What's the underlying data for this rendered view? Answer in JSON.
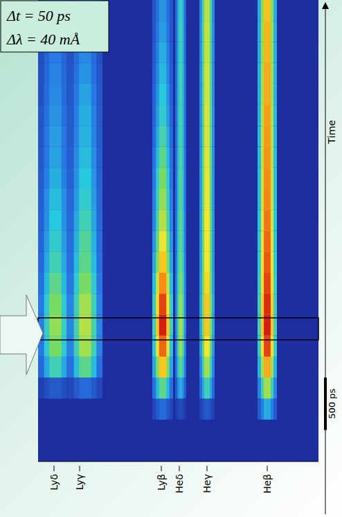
{
  "chart_data": {
    "type": "heatmap",
    "annotations": [
      "Δt = 50 ps",
      "Δλ = 40 mÅ"
    ],
    "y_label": "Time",
    "xlim": [
      0,
      405
    ],
    "xticks": [
      {
        "value": 23,
        "label": "Lyδ"
      },
      {
        "value": 60,
        "label": "Lyγ"
      },
      {
        "value": 178,
        "label": "Lyβ"
      },
      {
        "value": 204,
        "label": "Heδ"
      },
      {
        "value": 244,
        "label": "Heγ"
      },
      {
        "value": 331,
        "label": "Heβ"
      }
    ],
    "ylim": [
      0,
      4400
    ],
    "t_bin_edges": [
      0,
      200,
      400,
      600,
      800,
      1000,
      1200,
      1400,
      1600,
      1800,
      2000,
      2200,
      2400,
      2600,
      2800,
      3000,
      3200,
      3400,
      3600,
      3800,
      4000,
      4200,
      4400
    ],
    "zlim": [
      0,
      1
    ],
    "series": [
      {
        "name": "Lyδ",
        "x": 25,
        "width": 50,
        "values": [
          0,
          0,
          0,
          0.15,
          0.45,
          0.55,
          0.58,
          0.55,
          0.5,
          0.45,
          0.42,
          0.4,
          0.38,
          0.35,
          0.33,
          0.32,
          0.3,
          0.28,
          0.27,
          0.25,
          0.24,
          0.22
        ]
      },
      {
        "name": "Lyγ",
        "x": 68,
        "width": 50,
        "values": [
          0,
          0,
          0,
          0.2,
          0.5,
          0.6,
          0.62,
          0.6,
          0.55,
          0.5,
          0.48,
          0.45,
          0.42,
          0.4,
          0.38,
          0.36,
          0.35,
          0.33,
          0.3,
          0.28,
          0.26,
          0.25
        ]
      },
      {
        "name": "Lyβ",
        "x": 180,
        "width": 30,
        "values": [
          0,
          0,
          0.2,
          0.5,
          0.75,
          0.9,
          1.0,
          0.95,
          0.85,
          0.75,
          0.68,
          0.62,
          0.58,
          0.55,
          0.5,
          0.46,
          0.42,
          0.4,
          0.37,
          0.35,
          0.32,
          0.3
        ]
      },
      {
        "name": "Heδ",
        "x": 206,
        "width": 16,
        "values": [
          0,
          0,
          0.1,
          0.35,
          0.5,
          0.58,
          0.6,
          0.58,
          0.55,
          0.52,
          0.5,
          0.5,
          0.48,
          0.48,
          0.47,
          0.46,
          0.46,
          0.45,
          0.45,
          0.44,
          0.44,
          0.43
        ]
      },
      {
        "name": "Heγ",
        "x": 244,
        "width": 22,
        "values": [
          0,
          0,
          0.15,
          0.45,
          0.6,
          0.7,
          0.75,
          0.75,
          0.72,
          0.7,
          0.7,
          0.7,
          0.68,
          0.68,
          0.67,
          0.66,
          0.66,
          0.65,
          0.65,
          0.64,
          0.64,
          0.63
        ]
      },
      {
        "name": "Heβ",
        "x": 331,
        "width": 28,
        "values": [
          0,
          0,
          0.35,
          0.6,
          0.8,
          0.95,
          1.0,
          0.98,
          0.95,
          0.92,
          0.9,
          0.88,
          0.86,
          0.85,
          0.84,
          0.83,
          0.82,
          0.8,
          0.8,
          0.78,
          0.78,
          0.76
        ]
      }
    ],
    "scale_bar": {
      "start": 300,
      "length": 500,
      "label": "500 ps"
    },
    "highlight": [
      1160,
      1370
    ],
    "tick_labels": "x",
    "grid": false
  }
}
